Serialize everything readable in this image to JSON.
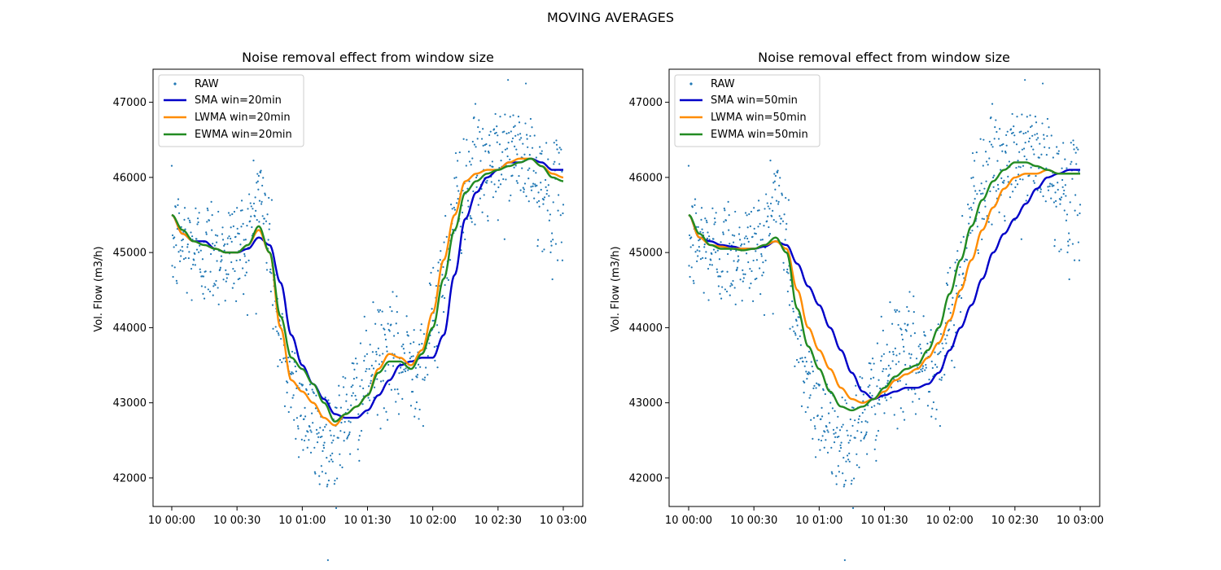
{
  "figure": {
    "suptitle": "MOVING AVERAGES"
  },
  "style": {
    "raw_color": "#1f77b4",
    "sma_color": "#0000c8",
    "lwma_color": "#ff8c00",
    "ewma_color": "#228b22"
  },
  "chart_data": [
    {
      "type": "line",
      "title": "Noise removal effect from window size",
      "xlabel": "",
      "ylabel": "Vol. Flow (m3/h)",
      "xlim": [
        "10 00:00",
        "10 03:00"
      ],
      "ylim": [
        41620,
        47440
      ],
      "x_ticks": [
        "10 00:00",
        "10 00:30",
        "10 01:00",
        "10 01:30",
        "10 02:00",
        "10 02:30",
        "10 03:00"
      ],
      "y_ticks": [
        42000,
        43000,
        44000,
        45000,
        46000,
        47000
      ],
      "legend": "top-left",
      "x_minutes": [
        0,
        5,
        10,
        15,
        20,
        25,
        30,
        35,
        40,
        45,
        50,
        55,
        60,
        65,
        70,
        75,
        80,
        85,
        90,
        95,
        100,
        105,
        110,
        115,
        120,
        125,
        130,
        135,
        140,
        145,
        150,
        155,
        160,
        165,
        170,
        175,
        180
      ],
      "raw_center": [
        45100,
        45150,
        45050,
        45000,
        45050,
        45000,
        45050,
        45150,
        45900,
        45100,
        43700,
        43300,
        43000,
        42600,
        42500,
        42500,
        42800,
        43050,
        43300,
        43600,
        43600,
        43500,
        43600,
        43600,
        44000,
        44800,
        45600,
        45900,
        46100,
        46100,
        46150,
        46350,
        46300,
        46100,
        45900,
        45600,
        45800
      ],
      "series": [
        {
          "name": "RAW",
          "kind": "scatter"
        },
        {
          "name": "SMA win=20min",
          "kind": "line",
          "y": [
            45500,
            45250,
            45150,
            45150,
            45050,
            45000,
            45000,
            45050,
            45200,
            45100,
            44600,
            43900,
            43500,
            43250,
            43050,
            42850,
            42800,
            42800,
            42900,
            43100,
            43300,
            43500,
            43550,
            43600,
            43600,
            43900,
            44700,
            45450,
            45800,
            46000,
            46100,
            46200,
            46200,
            46250,
            46200,
            46100,
            46100
          ]
        },
        {
          "name": "LWMA win=20min",
          "kind": "line",
          "y": [
            45500,
            45250,
            45150,
            45100,
            45050,
            45000,
            45000,
            45100,
            45300,
            45000,
            44000,
            43300,
            43150,
            43000,
            42800,
            42700,
            42850,
            42950,
            43100,
            43450,
            43650,
            43600,
            43500,
            43700,
            44200,
            44900,
            45500,
            45950,
            46050,
            46100,
            46100,
            46200,
            46250,
            46250,
            46150,
            46050,
            46000
          ]
        },
        {
          "name": "EWMA win=20min",
          "kind": "line",
          "y": [
            45500,
            45300,
            45150,
            45100,
            45050,
            45000,
            45000,
            45100,
            45350,
            45000,
            44150,
            43600,
            43450,
            43250,
            43000,
            42750,
            42850,
            42950,
            43100,
            43400,
            43550,
            43550,
            43450,
            43650,
            44000,
            44650,
            45300,
            45800,
            45950,
            46050,
            46100,
            46150,
            46200,
            46250,
            46150,
            46000,
            45950
          ]
        }
      ]
    },
    {
      "type": "line",
      "title": "Noise removal effect from window size",
      "xlabel": "",
      "ylabel": "Vol. Flow (m3/h)",
      "xlim": [
        "10 00:00",
        "10 03:00"
      ],
      "ylim": [
        41620,
        47440
      ],
      "x_ticks": [
        "10 00:00",
        "10 00:30",
        "10 01:00",
        "10 01:30",
        "10 02:00",
        "10 02:30",
        "10 03:00"
      ],
      "y_ticks": [
        42000,
        43000,
        44000,
        45000,
        46000,
        47000
      ],
      "legend": "top-left",
      "x_minutes": [
        0,
        5,
        10,
        15,
        20,
        25,
        30,
        35,
        40,
        45,
        50,
        55,
        60,
        65,
        70,
        75,
        80,
        85,
        90,
        95,
        100,
        105,
        110,
        115,
        120,
        125,
        130,
        135,
        140,
        145,
        150,
        155,
        160,
        165,
        170,
        175,
        180
      ],
      "raw_center": [
        45100,
        45150,
        45050,
        45000,
        45050,
        45000,
        45050,
        45150,
        45900,
        45100,
        43700,
        43300,
        43000,
        42600,
        42500,
        42500,
        42800,
        43050,
        43300,
        43600,
        43600,
        43500,
        43600,
        43600,
        44000,
        44800,
        45600,
        45900,
        46100,
        46100,
        46150,
        46350,
        46300,
        46100,
        45900,
        45600,
        45800
      ],
      "series": [
        {
          "name": "RAW",
          "kind": "scatter"
        },
        {
          "name": "SMA win=50min",
          "kind": "line",
          "y": [
            45500,
            45200,
            45150,
            45100,
            45080,
            45050,
            45050,
            45080,
            45150,
            45100,
            44850,
            44550,
            44300,
            44000,
            43700,
            43400,
            43150,
            43050,
            43100,
            43150,
            43200,
            43200,
            43250,
            43400,
            43700,
            44000,
            44300,
            44650,
            45000,
            45250,
            45450,
            45650,
            45850,
            46000,
            46050,
            46100,
            46100
          ]
        },
        {
          "name": "LWMA win=50min",
          "kind": "line",
          "y": [
            45500,
            45200,
            45100,
            45080,
            45050,
            45050,
            45050,
            45100,
            45150,
            45050,
            44500,
            44000,
            43700,
            43450,
            43200,
            43050,
            43000,
            43050,
            43150,
            43300,
            43380,
            43450,
            43600,
            43800,
            44100,
            44500,
            44900,
            45300,
            45600,
            45850,
            46000,
            46050,
            46050,
            46100,
            46050,
            46050,
            46050
          ]
        },
        {
          "name": "EWMA win=50min",
          "kind": "line",
          "y": [
            45500,
            45250,
            45100,
            45050,
            45050,
            45030,
            45050,
            45100,
            45200,
            45000,
            44250,
            43750,
            43450,
            43150,
            42950,
            42900,
            42950,
            43050,
            43200,
            43350,
            43450,
            43500,
            43700,
            44000,
            44450,
            44900,
            45350,
            45700,
            45950,
            46100,
            46200,
            46200,
            46150,
            46100,
            46050,
            46050,
            46050
          ]
        }
      ]
    }
  ]
}
